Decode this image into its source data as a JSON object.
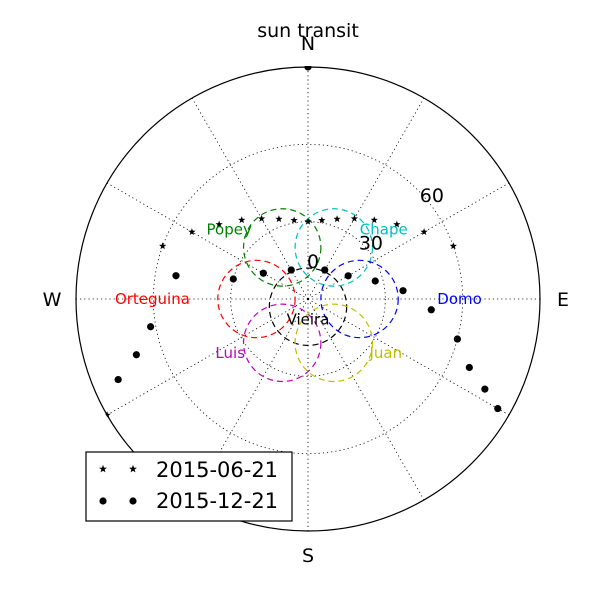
{
  "chart_data": {
    "type": "scatter",
    "projection": "polar",
    "title": "sun transit",
    "radial_axis": {
      "label_zenith": "0",
      "ticks": [
        30,
        60
      ],
      "rmax": 90,
      "grid": true
    },
    "direction_labels": {
      "north": "N",
      "east": "E",
      "south": "S",
      "west": "W"
    },
    "series": [
      {
        "name": "2015-06-21",
        "marker": "star",
        "points": [
          {
            "az": 0,
            "zen": 30
          },
          {
            "az": 10,
            "zen": 31
          },
          {
            "az": 20,
            "zen": 33
          },
          {
            "az": 30,
            "zen": 36
          },
          {
            "az": 40,
            "zen": 40
          },
          {
            "az": 50,
            "zen": 45
          },
          {
            "az": 60,
            "zen": 52
          },
          {
            "az": 70,
            "zen": 60
          },
          {
            "az": -10,
            "zen": 31
          },
          {
            "az": -20,
            "zen": 33
          },
          {
            "az": -30,
            "zen": 36
          },
          {
            "az": -40,
            "zen": 40
          },
          {
            "az": -50,
            "zen": 45
          },
          {
            "az": -60,
            "zen": 52
          },
          {
            "az": -70,
            "zen": 60
          },
          {
            "az": -120,
            "zen": 90
          }
        ]
      },
      {
        "name": "2015-12-21",
        "marker": "dot",
        "points": [
          {
            "az": 0,
            "zen": 90
          },
          {
            "az": 30,
            "zen": 13
          },
          {
            "az": 60,
            "zen": 18
          },
          {
            "az": 75,
            "zen": 27
          },
          {
            "az": 85,
            "zen": 37
          },
          {
            "az": 95,
            "zen": 48
          },
          {
            "az": 105,
            "zen": 60
          },
          {
            "az": 113,
            "zen": 68
          },
          {
            "az": 117,
            "zen": 77
          },
          {
            "az": 120,
            "zen": 85
          },
          {
            "az": -30,
            "zen": 13
          },
          {
            "az": -60,
            "zen": 20
          },
          {
            "az": -75,
            "zen": 30
          },
          {
            "az": -80,
            "zen": 52
          },
          {
            "az": -100,
            "zen": 62
          },
          {
            "az": -108,
            "zen": 70
          },
          {
            "az": -113,
            "zen": 80
          }
        ]
      }
    ],
    "stations": [
      {
        "name": "Vieira",
        "color": "#000000",
        "cx": 0,
        "cy": -3,
        "r": 15
      },
      {
        "name": "Popey",
        "color": "#008000",
        "cx": -10,
        "cy": 20,
        "r": 15
      },
      {
        "name": "Chape",
        "color": "#00bfbf",
        "cx": 10,
        "cy": 20,
        "r": 15
      },
      {
        "name": "Orteguina",
        "color": "#ff0000",
        "cx": -20,
        "cy": 0,
        "r": 15
      },
      {
        "name": "Domo",
        "color": "#0000ff",
        "cx": 20,
        "cy": 0,
        "r": 15
      },
      {
        "name": "Luis",
        "color": "#bf00bf",
        "cx": -10,
        "cy": -17,
        "r": 15
      },
      {
        "name": "Juan",
        "color": "#bfbf00",
        "cx": 10,
        "cy": -17,
        "r": 15
      }
    ],
    "legend": {
      "placement": "lower-left"
    }
  }
}
